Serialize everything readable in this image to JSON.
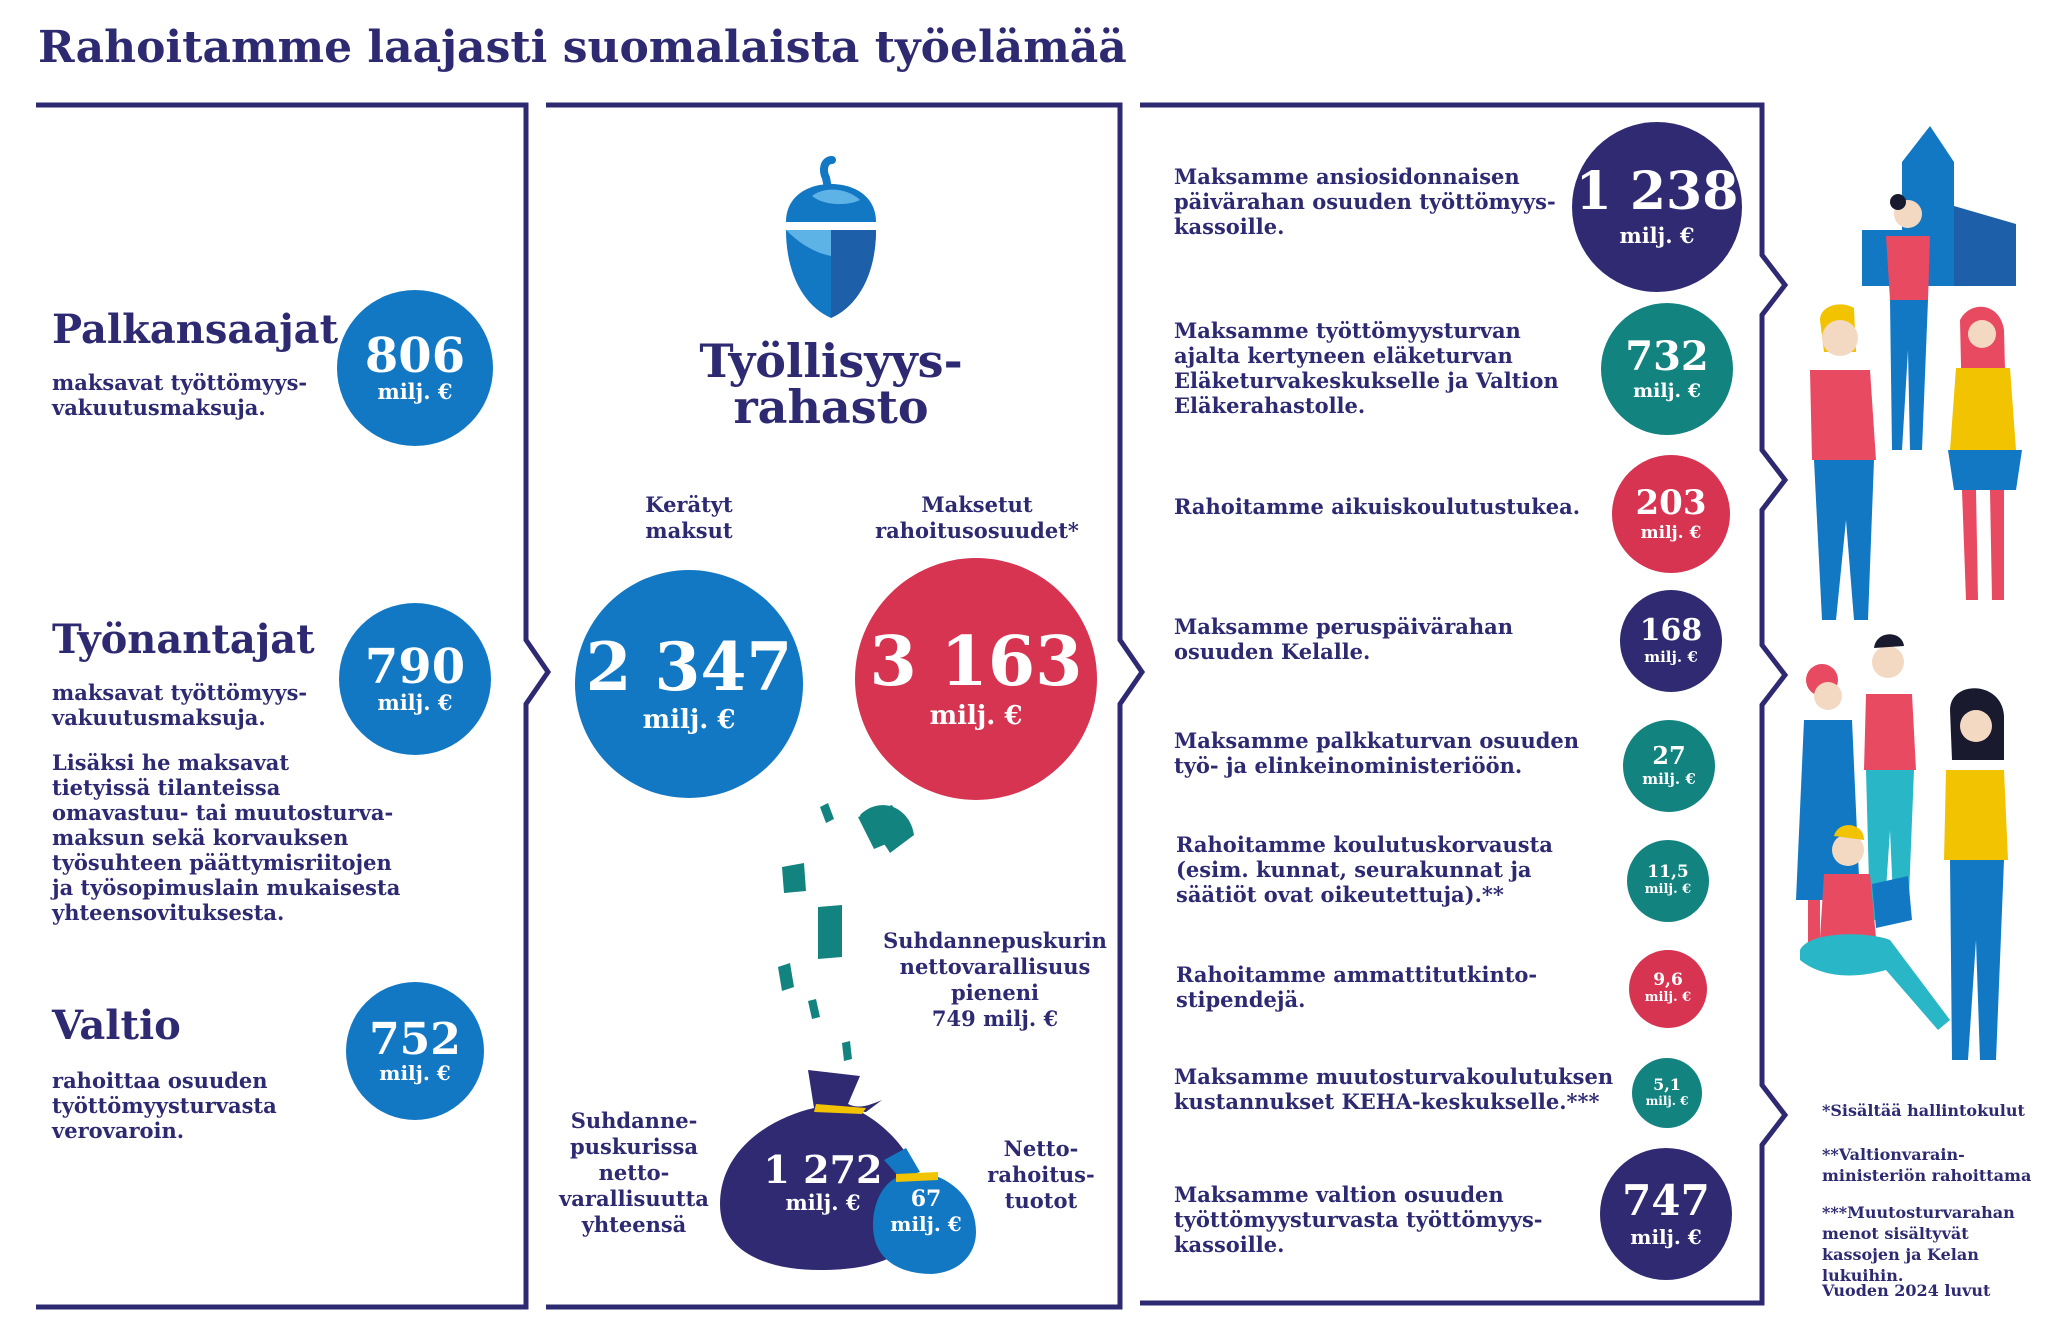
{
  "title": "Rahoitamme laajasti suomalaista työelämää",
  "left": {
    "payers": [
      {
        "heading": "Palkansaajat",
        "desc": "maksavat työttömyys-\nvakuutusmaksuja.",
        "value": "806",
        "unit": "milj. €"
      },
      {
        "heading": "Työnantajat",
        "desc": "maksavat työttömyys-\nvakuutusmaksuja.",
        "extra": "Lisäksi he maksavat\ntietyissä tilanteissa\nomavastuu- tai muutosturva-\nmaksun sekä korvauksen\ntyösuhteen päättymisriitojen\nja työsopimuslain mukaisesta\nyhteensovituksesta.",
        "value": "790",
        "unit": "milj. €"
      },
      {
        "heading": "Valtio",
        "desc": "rahoittaa osuuden\ntyöttömyysturvasta\nverovaroin.",
        "value": "752",
        "unit": "milj. €"
      }
    ]
  },
  "center": {
    "fund_name": "Työllisyys-\nrahasto",
    "collected": {
      "label": "Kerätyt\nmaksut",
      "value": "2 347",
      "unit": "milj. €"
    },
    "paid": {
      "label": "Maksetut\nrahoitusosuudet*",
      "value": "3 163",
      "unit": "milj. €"
    },
    "buffer_change": "Suhdannepuskurin\nnettovarallisuus\npieneni\n749 milj. €",
    "buffer_total": {
      "label": "Suhdanne-\npuskurissa\nnetto-\nvarallisuutta\nyhteensä",
      "value": "1 272",
      "unit": "milj. €"
    },
    "net_income": {
      "label": "Netto-\nrahoitus-\ntuotot",
      "value": "67",
      "unit": "milj. €"
    }
  },
  "right": {
    "items": [
      {
        "text": "Maksamme ansiosidonnaisen\npäivärahan osuuden työttömyys-\nkassoille.",
        "value": "1 238",
        "unit": "milj. €",
        "color": "#2f2a72"
      },
      {
        "text": "Maksamme työttömyysturvan\najalta kertyneen eläketurvan\nEläketurvakeskukselle ja Valtion\nEläkerahastolle.",
        "value": "732",
        "unit": "milj. €",
        "color": "#138380"
      },
      {
        "text": "Rahoitamme aikuiskoulutustukea.",
        "value": "203",
        "unit": "milj. €",
        "color": "#d63450"
      },
      {
        "text": "Maksamme peruspäivärahan\nosuuden Kelalle.",
        "value": "168",
        "unit": "milj. €",
        "color": "#2f2a72"
      },
      {
        "text": "Maksamme palkkaturvan osuuden\ntyö- ja elinkeinoministeriöön.",
        "value": "27",
        "unit": "milj. €",
        "color": "#138380"
      },
      {
        "text": "Rahoitamme koulutuskorvausta\n(esim. kunnat, seurakunnat ja\nsäätiöt ovat oikeutettuja).**",
        "value": "11,5",
        "unit": "milj. €",
        "color": "#138380"
      },
      {
        "text": "Rahoitamme ammattitutkinto-\nstipendejä.",
        "value": "9,6",
        "unit": "milj. €",
        "color": "#d63450"
      },
      {
        "text": "Maksamme muutosturvakoulutuksen\nkustannukset KEHA-keskukselle.***",
        "value": "5,1",
        "unit": "milj. €",
        "color": "#138380"
      },
      {
        "text": "Maksamme valtion osuuden\ntyöttömyysturvasta työttömyys-\nkassoille.",
        "value": "747",
        "unit": "milj. €",
        "color": "#2f2a72"
      }
    ]
  },
  "footnotes": {
    "n1": "*Sisältää hallintokulut",
    "n2": "**Valtionvarain-\nministeriön rahoittama",
    "n3": "***Muutosturvarahan\nmenot sisältyvät\nkassojen ja Kelan lukuihin.",
    "year": "Vuoden 2024 luvut"
  }
}
